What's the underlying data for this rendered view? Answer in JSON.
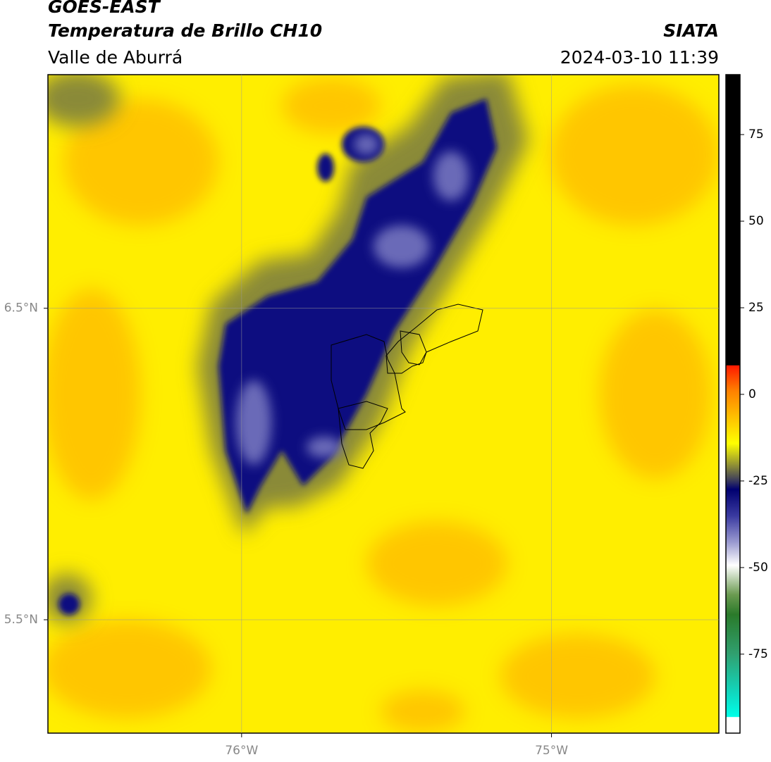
{
  "header": {
    "title": "GOES-EAST",
    "subtitle": "Temperatura de Brillo CH10",
    "region": "Valle de Aburrá",
    "source": "SIATA",
    "datetime": "2024-03-10 11:39"
  },
  "map": {
    "xlim": [
      -76.625,
      -74.46
    ],
    "ylim": [
      5.136,
      7.25
    ],
    "xticks": [
      {
        "value": -76,
        "label": "76°W"
      },
      {
        "value": -75,
        "label": "75°W"
      }
    ],
    "yticks": [
      {
        "value": 6.5,
        "label": "6.5°N"
      },
      {
        "value": 5.5,
        "label": "5.5°N"
      }
    ],
    "grid": true
  },
  "colorbar": {
    "lim": [
      -97.8,
      92.3
    ],
    "ticks": [
      75,
      50,
      25,
      0,
      -25,
      -50,
      -75
    ]
  }
}
